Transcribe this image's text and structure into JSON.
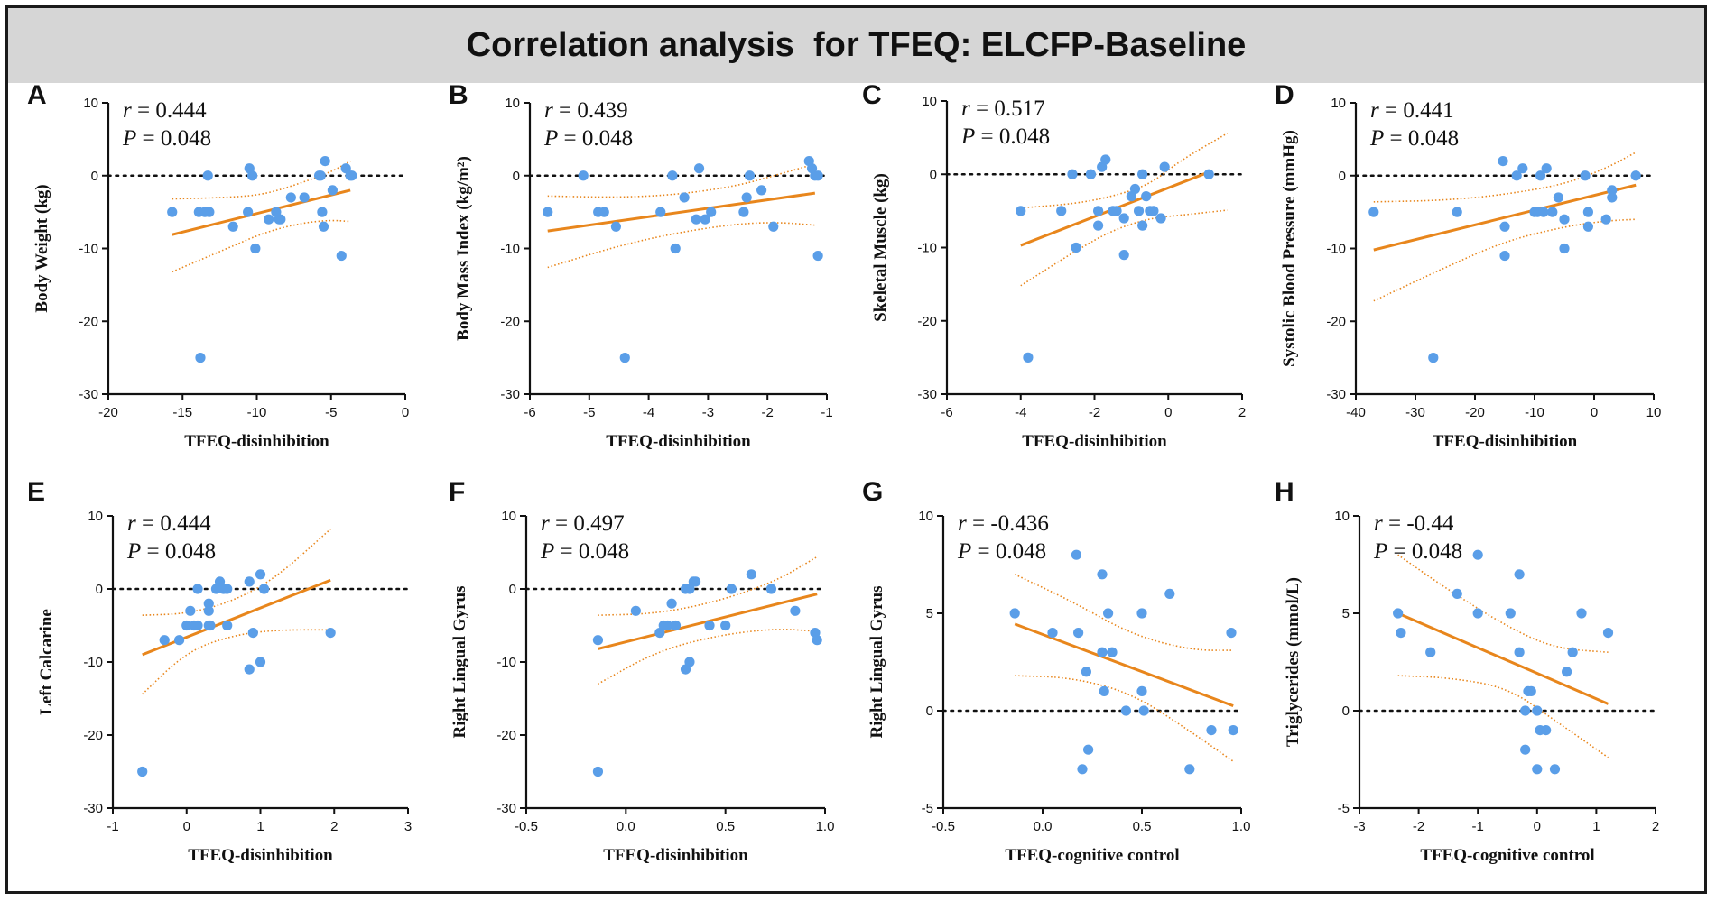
{
  "title": "Correlation analysis  for TFEQ: ELCFP-Baseline",
  "colors": {
    "point": "#5a9ee8",
    "fit": "#e8861c",
    "ci": "#e8861c",
    "axis": "#111111",
    "header_bg": "#d6d6d6"
  },
  "chart_data": [
    {
      "panel": "A",
      "type": "scatter",
      "xlabel": "TFEQ-disinhibition",
      "ylabel": "Body Weight (kg)",
      "xlim": [
        -20,
        0
      ],
      "ylim": [
        -30,
        10
      ],
      "xticks": [
        "-20",
        "-15",
        "-10",
        "-5",
        "0"
      ],
      "yticks": [
        "-30",
        "-20",
        "-10",
        "0",
        "10"
      ],
      "r_label": "r",
      "r_text": " = 0.444",
      "p_label": "P",
      "p_text": " = 0.048",
      "x": [
        -15.7,
        -13.9,
        -13.5,
        -13.2,
        -13.3,
        -11.6,
        -10.6,
        -10.5,
        -10.3,
        -10.1,
        -9.2,
        -8.5,
        -8.7,
        -8.4,
        -7.7,
        -6.8,
        -5.8,
        -5.6,
        -5.5,
        -5.7,
        -5.4,
        -4.9,
        -4.3,
        -4.0,
        -3.7,
        -3.6,
        -13.8
      ],
      "y": [
        -5,
        -5,
        -5,
        -5,
        0,
        -7,
        -5,
        1,
        0,
        -10,
        -6,
        -6,
        -5,
        -6,
        -3,
        -3,
        0,
        -5,
        -7,
        0,
        2,
        -2,
        -11,
        1,
        0,
        0,
        -25
      ],
      "fit": {
        "x0": -15.7,
        "y0": -8.1,
        "x1": -3.7,
        "y1": -2.0
      },
      "ci_upper": [
        [
          -15.7,
          -3.2
        ],
        [
          -12,
          -3.0
        ],
        [
          -9.5,
          -2.6
        ],
        [
          -7,
          -1.0
        ],
        [
          -5,
          0.5
        ],
        [
          -3.7,
          2.0
        ]
      ],
      "ci_lower": [
        [
          -15.7,
          -13.2
        ],
        [
          -12,
          -10.0
        ],
        [
          -9.5,
          -7.8
        ],
        [
          -7,
          -6.5
        ],
        [
          -5,
          -6.1
        ],
        [
          -3.7,
          -6.3
        ]
      ]
    },
    {
      "panel": "B",
      "type": "scatter",
      "xlabel": "TFEQ-disinhibition",
      "ylabel": "Body Mass Index (kg/m²)",
      "xlim": [
        -6,
        -1
      ],
      "ylim": [
        -30,
        10
      ],
      "xticks": [
        "-6",
        "-5",
        "-4",
        "-3",
        "-2",
        "-1"
      ],
      "yticks": [
        "-30",
        "-20",
        "-10",
        "0",
        "10"
      ],
      "r_label": "r",
      "r_text": " = 0.439",
      "p_label": "P",
      "p_text": " = 0.048",
      "x": [
        -5.7,
        -5.1,
        -4.85,
        -4.75,
        -4.55,
        -4.4,
        -3.8,
        -3.6,
        -3.55,
        -3.4,
        -3.2,
        -3.15,
        -3.05,
        -2.95,
        -2.4,
        -2.35,
        -2.3,
        -2.1,
        -1.9,
        -1.3,
        -1.25,
        -1.2,
        -1.15,
        -1.15
      ],
      "y": [
        -5,
        0,
        -5,
        -5,
        -7,
        -25,
        -5,
        0,
        -10,
        -3,
        -6,
        1,
        -6,
        -5,
        -5,
        -3,
        0,
        -2,
        -7,
        2,
        1,
        0,
        0,
        -11
      ],
      "fit": {
        "x0": -5.7,
        "y0": -7.6,
        "x1": -1.2,
        "y1": -2.4
      },
      "ci_upper": [
        [
          -5.7,
          -2.8
        ],
        [
          -4.5,
          -3.0
        ],
        [
          -3.5,
          -2.6
        ],
        [
          -2.5,
          -1.4
        ],
        [
          -1.8,
          0.2
        ],
        [
          -1.2,
          1.6
        ]
      ],
      "ci_lower": [
        [
          -5.7,
          -12.6
        ],
        [
          -4.5,
          -9.6
        ],
        [
          -3.5,
          -7.8
        ],
        [
          -2.5,
          -6.6
        ],
        [
          -1.8,
          -6.4
        ],
        [
          -1.2,
          -6.8
        ]
      ]
    },
    {
      "panel": "C",
      "type": "scatter",
      "xlabel": "TFEQ-disinhibition",
      "ylabel": "Skeletal Muscle (kg)",
      "xlim": [
        -6,
        2
      ],
      "ylim": [
        -30,
        10
      ],
      "xticks": [
        "-6",
        "-4",
        "-2",
        "0",
        "2"
      ],
      "yticks": [
        "-30",
        "-20",
        "-10",
        "0",
        "10"
      ],
      "r_label": "r",
      "r_text": " = 0.517",
      "p_label": "P",
      "p_text": " = 0.048",
      "x": [
        -4.0,
        -3.8,
        -2.9,
        -2.6,
        -2.5,
        -2.1,
        -1.9,
        -1.9,
        -1.8,
        -1.7,
        -1.5,
        -1.4,
        -1.2,
        -1.2,
        -1.0,
        -0.9,
        -0.8,
        -0.7,
        -0.7,
        -0.6,
        -0.5,
        -0.4,
        -0.2,
        -0.1,
        1.1
      ],
      "y": [
        -5,
        -25,
        -5,
        0,
        -10,
        0,
        -7,
        -5,
        1,
        2,
        -5,
        -5,
        -6,
        -11,
        -3,
        -2,
        -5,
        -7,
        0,
        -3,
        -5,
        -5,
        -6,
        1,
        0
      ],
      "fit": {
        "x0": -4.0,
        "y0": -9.7,
        "x1": 1.1,
        "y1": 0.3
      },
      "ci_upper": [
        [
          -4.0,
          -4.6
        ],
        [
          -2.5,
          -4.0
        ],
        [
          -1.5,
          -3.0
        ],
        [
          -0.5,
          -1.4
        ],
        [
          0.3,
          1.8
        ],
        [
          1.6,
          5.6
        ]
      ],
      "ci_lower": [
        [
          -4.0,
          -15.2
        ],
        [
          -2.5,
          -10.4
        ],
        [
          -1.5,
          -7.6
        ],
        [
          -0.5,
          -6.0
        ],
        [
          0.3,
          -5.6
        ],
        [
          1.6,
          -4.9
        ]
      ]
    },
    {
      "panel": "D",
      "type": "scatter",
      "xlabel": "TFEQ-disinhibition",
      "ylabel": "Systolic Blood Pressure (mmHg)",
      "xlim": [
        -40,
        10
      ],
      "ylim": [
        -30,
        10
      ],
      "xticks": [
        "-40",
        "-30",
        "-20",
        "-10",
        "0",
        "10"
      ],
      "yticks": [
        "-30",
        "-20",
        "-10",
        "0",
        "10"
      ],
      "r_label": "r",
      "r_text": " = 0.441",
      "p_label": "P",
      "p_text": " = 0.048",
      "x": [
        -37,
        -27,
        -23,
        -15.3,
        -15,
        -15,
        -13,
        -12,
        -10,
        -9.5,
        -9,
        -8.5,
        -8,
        -7,
        -6,
        -5,
        -5,
        -1.5,
        -1,
        -1,
        2,
        3,
        3,
        7
      ],
      "y": [
        -5,
        -25,
        -5,
        2,
        -7,
        -11,
        0,
        1,
        -5,
        -5,
        0,
        -5,
        1,
        -5,
        -3,
        -6,
        -10,
        0,
        -5,
        -7,
        -6,
        -3,
        -2,
        0
      ],
      "fit": {
        "x0": -37,
        "y0": -10.2,
        "x1": 7,
        "y1": -1.3
      },
      "ci_upper": [
        [
          -37,
          -3.6
        ],
        [
          -25,
          -3.4
        ],
        [
          -15,
          -2.6
        ],
        [
          -5,
          -1.2
        ],
        [
          2,
          1.0
        ],
        [
          7,
          3.2
        ]
      ],
      "ci_lower": [
        [
          -37,
          -17.2
        ],
        [
          -25,
          -12.6
        ],
        [
          -15,
          -9.0
        ],
        [
          -5,
          -7.0
        ],
        [
          2,
          -6.2
        ],
        [
          7,
          -6.0
        ]
      ]
    },
    {
      "panel": "E",
      "type": "scatter",
      "xlabel": "TFEQ-disinhibition",
      "ylabel": "Left Calcarine",
      "xlim": [
        -1,
        3
      ],
      "ylim": [
        -30,
        10
      ],
      "xticks": [
        "-1",
        "0",
        "1",
        "2",
        "3"
      ],
      "yticks": [
        "-30",
        "-20",
        "-10",
        "0",
        "10"
      ],
      "r_label": "r",
      "r_text": " = 0.444",
      "p_label": "P",
      "p_text": " = 0.048",
      "x": [
        -0.6,
        -0.3,
        -0.1,
        0,
        0.05,
        0.1,
        0.15,
        0.15,
        0.3,
        0.3,
        0.3,
        0.32,
        0.4,
        0.45,
        0.5,
        0.55,
        0.55,
        0.85,
        0.85,
        0.9,
        1.0,
        1.0,
        1.05,
        1.95
      ],
      "y": [
        -25,
        -7,
        -7,
        -5,
        -3,
        -5,
        0,
        -5,
        -5,
        -2,
        -3,
        -5,
        0,
        1,
        0,
        0,
        -5,
        1,
        -11,
        -6,
        -10,
        2,
        0,
        -6
      ],
      "fit": {
        "x0": -0.6,
        "y0": -9.0,
        "x1": 1.95,
        "y1": 1.2
      },
      "ci_upper": [
        [
          -0.6,
          -3.6
        ],
        [
          0,
          -3.4
        ],
        [
          0.6,
          -1.8
        ],
        [
          1.2,
          1.4
        ],
        [
          1.95,
          8.2
        ]
      ],
      "ci_lower": [
        [
          -0.6,
          -14.4
        ],
        [
          0,
          -8.6
        ],
        [
          0.6,
          -6.4
        ],
        [
          1.2,
          -5.6
        ],
        [
          1.95,
          -5.6
        ]
      ]
    },
    {
      "panel": "F",
      "type": "scatter",
      "xlabel": "TFEQ-disinhibition",
      "ylabel": "Right Lingual Gyrus",
      "xlim": [
        -0.5,
        1.0
      ],
      "ylim": [
        -30,
        10
      ],
      "xticks": [
        "-0.5",
        "0.0",
        "0.5",
        "1.0"
      ],
      "yticks": [
        "-30",
        "-20",
        "-10",
        "0",
        "10"
      ],
      "r_label": "r",
      "r_text": " = 0.497",
      "p_label": "P",
      "p_text": " = 0.048",
      "x": [
        -0.14,
        -0.14,
        0.05,
        0.17,
        0.19,
        0.21,
        0.23,
        0.25,
        0.3,
        0.3,
        0.32,
        0.34,
        0.35,
        0.42,
        0.5,
        0.53,
        0.63,
        0.73,
        0.85,
        0.95,
        0.96,
        0.32
      ],
      "y": [
        -25,
        -7,
        -3,
        -6,
        -5,
        -5,
        -2,
        -5,
        -11,
        0,
        -10,
        1,
        1,
        -5,
        -5,
        0,
        2,
        0,
        -3,
        -6,
        -7,
        0
      ],
      "fit": {
        "x0": -0.14,
        "y0": -8.2,
        "x1": 0.96,
        "y1": -0.7
      },
      "ci_upper": [
        [
          -0.14,
          -3.6
        ],
        [
          0.15,
          -3.4
        ],
        [
          0.45,
          -1.8
        ],
        [
          0.75,
          1.0
        ],
        [
          0.96,
          4.4
        ]
      ],
      "ci_lower": [
        [
          -0.14,
          -13.0
        ],
        [
          0.15,
          -8.6
        ],
        [
          0.45,
          -6.4
        ],
        [
          0.75,
          -5.4
        ],
        [
          0.96,
          -5.8
        ]
      ]
    },
    {
      "panel": "G",
      "type": "scatter",
      "xlabel": "TFEQ-cognitive control",
      "ylabel": "Right Lingual Gyrus",
      "xlim": [
        -0.5,
        1.0
      ],
      "ylim": [
        -5,
        10
      ],
      "xticks": [
        "-0.5",
        "0.0",
        "0.5",
        "1.0"
      ],
      "yticks": [
        "-5",
        "0",
        "5",
        "10"
      ],
      "r_label": "r",
      "r_text": " = -0.436",
      "p_label": "P",
      "p_text": " = 0.048",
      "x": [
        -0.14,
        0.05,
        0.17,
        0.18,
        0.2,
        0.22,
        0.23,
        0.3,
        0.3,
        0.31,
        0.33,
        0.35,
        0.42,
        0.5,
        0.5,
        0.51,
        0.64,
        0.74,
        0.85,
        0.95,
        0.96
      ],
      "y": [
        5,
        4,
        8,
        4,
        -3,
        2,
        -2,
        7,
        3,
        1,
        5,
        3,
        0,
        5,
        1,
        0,
        6,
        -3,
        -1,
        4,
        -1
      ],
      "fit": {
        "x0": -0.14,
        "y0": 4.45,
        "x1": 0.96,
        "y1": 0.25
      },
      "ci_upper": [
        [
          -0.14,
          7.0
        ],
        [
          0.15,
          5.6
        ],
        [
          0.45,
          3.9
        ],
        [
          0.75,
          3.1
        ],
        [
          0.96,
          3.1
        ]
      ],
      "ci_lower": [
        [
          -0.14,
          1.8
        ],
        [
          0.15,
          1.7
        ],
        [
          0.45,
          0.9
        ],
        [
          0.75,
          -1.1
        ],
        [
          0.96,
          -2.6
        ]
      ]
    },
    {
      "panel": "H",
      "type": "scatter",
      "xlabel": "TFEQ-cognitive control",
      "ylabel": "Triglycerides (mmol/L)",
      "xlim": [
        -3,
        2
      ],
      "ylim": [
        -5,
        10
      ],
      "xticks": [
        "-3",
        "-2",
        "-1",
        "0",
        "1",
        "2"
      ],
      "yticks": [
        "-5",
        "0",
        "5",
        "10"
      ],
      "r_label": "r",
      "r_text": " = -0.44",
      "p_label": "P",
      "p_text": " = 0.048",
      "x": [
        -2.35,
        -2.3,
        -1.8,
        -1.35,
        -1.0,
        -1.0,
        -0.45,
        -0.3,
        -0.3,
        -0.2,
        -0.2,
        -0.15,
        -0.1,
        0,
        0,
        0.05,
        0.15,
        0.3,
        0.5,
        0.6,
        0.75,
        1.2
      ],
      "y": [
        5,
        4,
        3,
        6,
        5,
        8,
        5,
        7,
        3,
        -2,
        0,
        1,
        1,
        -3,
        0,
        -1,
        -1,
        -3,
        2,
        3,
        5,
        4
      ],
      "fit": {
        "x0": -2.35,
        "y0": 5.0,
        "x1": 1.2,
        "y1": 0.35
      },
      "ci_upper": [
        [
          -2.35,
          8.0
        ],
        [
          -1.5,
          6.2
        ],
        [
          -0.5,
          4.3
        ],
        [
          0.3,
          3.2
        ],
        [
          1.2,
          3.0
        ]
      ],
      "ci_lower": [
        [
          -2.35,
          1.8
        ],
        [
          -1.5,
          1.7
        ],
        [
          -0.5,
          1.2
        ],
        [
          0.3,
          -0.5
        ],
        [
          1.2,
          -2.4
        ]
      ]
    }
  ]
}
